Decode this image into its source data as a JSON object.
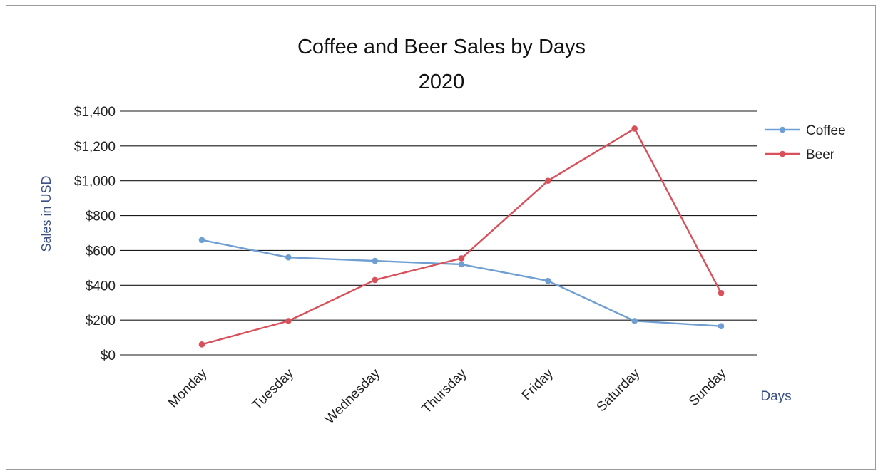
{
  "chart_data": {
    "type": "line",
    "title_lines": [
      "Coffee and Beer Sales by Days",
      "2020"
    ],
    "xlabel": "Days",
    "ylabel": "Sales in USD",
    "categories": [
      "Monday",
      "Tuesday",
      "Wednesday",
      "Thursday",
      "Friday",
      "Saturday",
      "Sunday"
    ],
    "y_ticks": [
      "$0",
      "$200",
      "$400",
      "$600",
      "$800",
      "$1,000",
      "$1,200",
      "$1,400"
    ],
    "ylim": [
      0,
      1400
    ],
    "grid": true,
    "legend_position": "right",
    "series": [
      {
        "name": "Coffee",
        "color": "#6f9fd2",
        "values": [
          660,
          560,
          540,
          520,
          425,
          195,
          165
        ]
      },
      {
        "name": "Beer",
        "color": "#d8505a",
        "values": [
          60,
          195,
          430,
          555,
          1000,
          1300,
          355
        ]
      }
    ],
    "axis_label_color": "#3a4f86"
  }
}
